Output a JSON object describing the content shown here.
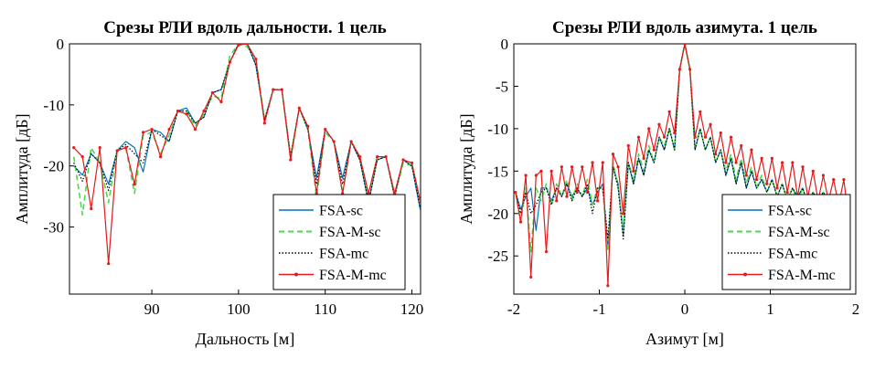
{
  "chart_data": [
    {
      "type": "line",
      "title": "Срезы РЛИ вдоль дальности. 1 цель",
      "xlabel": "Дальность [м]",
      "ylabel": "Амплитуда [дБ]",
      "xlim": [
        80.5,
        121
      ],
      "ylim": [
        -41,
        0
      ],
      "xticks": [
        90,
        100,
        110,
        120
      ],
      "yticks": [
        0,
        -10,
        -20,
        -30
      ],
      "grid": false,
      "legend_position": "bottom-right",
      "series": [
        {
          "name": "FSA-sc",
          "color": "#0072bd",
          "style": "solid",
          "x": [
            81,
            82,
            83,
            84,
            85,
            86,
            87,
            88,
            89,
            90,
            91,
            92,
            93,
            94,
            95,
            96,
            97,
            98,
            99,
            100,
            101,
            102,
            103,
            104,
            105,
            106,
            107,
            108,
            109,
            110,
            111,
            112,
            113,
            114,
            115,
            116,
            117,
            118,
            119,
            120,
            121
          ],
          "y": [
            -20,
            -21.5,
            -18,
            -19.5,
            -23,
            -17.5,
            -16,
            -17,
            -21,
            -14,
            -14.5,
            -16,
            -11,
            -10.5,
            -13,
            -12,
            -8,
            -7.5,
            -3,
            0,
            0,
            -3.5,
            -12.5,
            -7.5,
            -7.5,
            -18.5,
            -10.5,
            -14,
            -22,
            -14,
            -16,
            -22,
            -16,
            -19,
            -26,
            -19,
            -18.5,
            -25,
            -19,
            -20,
            -27.5
          ]
        },
        {
          "name": "FSA-M-sc",
          "color": "#4cd94c",
          "style": "dashed",
          "x": [
            81,
            82,
            83,
            84,
            85,
            86,
            87,
            88,
            89,
            90,
            91,
            92,
            93,
            94,
            95,
            96,
            97,
            98,
            99,
            100,
            101,
            102,
            103,
            104,
            105,
            106,
            107,
            108,
            109,
            110,
            111,
            112,
            113,
            114,
            115,
            116,
            117,
            118,
            119,
            120,
            121
          ],
          "y": [
            -18.5,
            -28,
            -17,
            -19.5,
            -26,
            -17.5,
            -17,
            -24.5,
            -15,
            -14.5,
            -18,
            -15,
            -11,
            -11,
            -13.5,
            -11.5,
            -8.5,
            -9,
            -2,
            0,
            -0.5,
            -2.5,
            -12.5,
            -7.5,
            -7.5,
            -18.5,
            -10.5,
            -14,
            -25,
            -14.5,
            -16,
            -24.5,
            -16,
            -18.5,
            -25,
            -19,
            -18.5,
            -25,
            -19.5,
            -20,
            -26
          ]
        },
        {
          "name": "FSA-mc",
          "color": "#000000",
          "style": "dotted",
          "x": [
            81,
            82,
            83,
            84,
            85,
            86,
            87,
            88,
            89,
            90,
            91,
            92,
            93,
            94,
            95,
            96,
            97,
            98,
            99,
            100,
            101,
            102,
            103,
            104,
            105,
            106,
            107,
            108,
            109,
            110,
            111,
            112,
            113,
            114,
            115,
            116,
            117,
            118,
            119,
            120,
            121
          ],
          "y": [
            -19.5,
            -22.5,
            -18,
            -19.5,
            -24,
            -17.5,
            -16.5,
            -18,
            -19.5,
            -14,
            -15,
            -16,
            -11,
            -11,
            -13,
            -12,
            -8,
            -7.5,
            -3,
            0,
            0,
            -3.5,
            -12.5,
            -7.5,
            -7.5,
            -18.5,
            -10.5,
            -14,
            -23,
            -14,
            -16,
            -23,
            -16,
            -19,
            -26,
            -19,
            -18.5,
            -25,
            -19,
            -20,
            -27
          ]
        },
        {
          "name": "FSA-M-mc",
          "color": "#e41a1c",
          "style": "solid-marker",
          "x": [
            81,
            82,
            83,
            84,
            85,
            86,
            87,
            88,
            89,
            90,
            91,
            92,
            93,
            94,
            95,
            96,
            97,
            98,
            99,
            100,
            101,
            102,
            103,
            104,
            105,
            106,
            107,
            108,
            109,
            110,
            111,
            112,
            113,
            114,
            115,
            116,
            117,
            118,
            119,
            120,
            121
          ],
          "y": [
            -17,
            -18.5,
            -27,
            -17,
            -36,
            -17.5,
            -17,
            -23,
            -14.5,
            -14,
            -18.5,
            -14,
            -11,
            -11.5,
            -14,
            -11,
            -8,
            -9.5,
            -3,
            -0.2,
            0,
            -2.5,
            -13,
            -7.5,
            -7.5,
            -19,
            -10.5,
            -13.5,
            -24.5,
            -14,
            -16,
            -24.5,
            -16,
            -18.5,
            -24.5,
            -18.5,
            -18.5,
            -24.5,
            -19,
            -19.5,
            -26
          ]
        }
      ]
    },
    {
      "type": "line",
      "title": "Срезы РЛИ вдоль азимута. 1 цель",
      "xlabel": "Азимут [м]",
      "ylabel": "Амплитуда [дБ]",
      "xlim": [
        -2,
        2
      ],
      "ylim": [
        -29.5,
        0
      ],
      "xticks": [
        -2,
        -1,
        0,
        1,
        2
      ],
      "yticks": [
        0,
        -5,
        -10,
        -15,
        -20,
        -25
      ],
      "grid": false,
      "legend_position": "bottom-right",
      "series": [
        {
          "name": "FSA-sc",
          "color": "#0072bd",
          "style": "solid",
          "x": [
            -1.98,
            -1.92,
            -1.86,
            -1.8,
            -1.74,
            -1.68,
            -1.62,
            -1.56,
            -1.5,
            -1.44,
            -1.38,
            -1.32,
            -1.26,
            -1.2,
            -1.14,
            -1.08,
            -1.02,
            -0.96,
            -0.9,
            -0.84,
            -0.78,
            -0.72,
            -0.66,
            -0.6,
            -0.54,
            -0.48,
            -0.42,
            -0.36,
            -0.3,
            -0.24,
            -0.18,
            -0.12,
            -0.06,
            0,
            0.06,
            0.12,
            0.18,
            0.24,
            0.3,
            0.36,
            0.42,
            0.48,
            0.54,
            0.6,
            0.66,
            0.72,
            0.78,
            0.84,
            0.9,
            0.96,
            1.02,
            1.08,
            1.14,
            1.2,
            1.26,
            1.32,
            1.38,
            1.44,
            1.5,
            1.56,
            1.62,
            1.68,
            1.74,
            1.8,
            1.86,
            1.92
          ],
          "y": [
            -17.5,
            -19.5,
            -18,
            -17,
            -22,
            -17,
            -17,
            -18.5,
            -17,
            -18,
            -16.5,
            -18,
            -17,
            -18,
            -17,
            -19,
            -17.5,
            -16.5,
            -24,
            -14.5,
            -16.5,
            -22.5,
            -14,
            -16.5,
            -13.5,
            -15.5,
            -12.5,
            -14,
            -11,
            -12.5,
            -10,
            -12.5,
            -3,
            0,
            -3,
            -12.5,
            -10,
            -12.5,
            -11,
            -14,
            -12.5,
            -15.5,
            -13.5,
            -16.5,
            -14,
            -17,
            -15,
            -17,
            -16,
            -17.5,
            -16,
            -18,
            -16.5,
            -18.5,
            -17,
            -18,
            -17,
            -19,
            -17.5,
            -18.5,
            -17.5,
            -18.5,
            -18,
            -18.5,
            -18,
            -19
          ]
        },
        {
          "name": "FSA-M-sc",
          "color": "#4cd94c",
          "style": "dashed",
          "x": [
            -1.98,
            -1.92,
            -1.86,
            -1.8,
            -1.74,
            -1.68,
            -1.62,
            -1.56,
            -1.5,
            -1.44,
            -1.38,
            -1.32,
            -1.26,
            -1.2,
            -1.14,
            -1.08,
            -1.02,
            -0.96,
            -0.9,
            -0.84,
            -0.78,
            -0.72,
            -0.66,
            -0.6,
            -0.54,
            -0.48,
            -0.42,
            -0.36,
            -0.3,
            -0.24,
            -0.18,
            -0.12,
            -0.06,
            0,
            0.06,
            0.12,
            0.18,
            0.24,
            0.3,
            0.36,
            0.42,
            0.48,
            0.54,
            0.6,
            0.66,
            0.72,
            0.78,
            0.84,
            0.9,
            0.96,
            1.02,
            1.08,
            1.14,
            1.2,
            1.26,
            1.32,
            1.38,
            1.44,
            1.5,
            1.56,
            1.62,
            1.68,
            1.74,
            1.8,
            1.86,
            1.92
          ],
          "y": [
            -17.5,
            -21,
            -17,
            -24.5,
            -17,
            -18.5,
            -16.5,
            -19,
            -16.5,
            -18,
            -16,
            -18.5,
            -16.5,
            -18,
            -16,
            -19,
            -17,
            -17,
            -24.5,
            -14,
            -17,
            -22,
            -14,
            -16,
            -13,
            -15,
            -12,
            -14,
            -11,
            -12,
            -10,
            -12.5,
            -3,
            0,
            -3,
            -12.5,
            -10,
            -12.5,
            -11,
            -14,
            -12.5,
            -15,
            -13,
            -16,
            -13.5,
            -16.5,
            -14.5,
            -17,
            -15.5,
            -17.5,
            -16,
            -18,
            -16.5,
            -18.5,
            -17,
            -18.5,
            -17,
            -19,
            -17.5,
            -18.5,
            -17.5,
            -19,
            -18,
            -19,
            -18,
            -19.5
          ]
        },
        {
          "name": "FSA-mc",
          "color": "#000000",
          "style": "dotted",
          "x": [
            -1.98,
            -1.92,
            -1.86,
            -1.8,
            -1.74,
            -1.68,
            -1.62,
            -1.56,
            -1.5,
            -1.44,
            -1.38,
            -1.32,
            -1.26,
            -1.2,
            -1.14,
            -1.08,
            -1.02,
            -0.96,
            -0.9,
            -0.84,
            -0.78,
            -0.72,
            -0.66,
            -0.6,
            -0.54,
            -0.48,
            -0.42,
            -0.36,
            -0.3,
            -0.24,
            -0.18,
            -0.12,
            -0.06,
            0,
            0.06,
            0.12,
            0.18,
            0.24,
            0.3,
            0.36,
            0.42,
            0.48,
            0.54,
            0.6,
            0.66,
            0.72,
            0.78,
            0.84,
            0.9,
            0.96,
            1.02,
            1.08,
            1.14,
            1.2,
            1.26,
            1.32,
            1.38,
            1.44,
            1.5,
            1.56,
            1.62,
            1.68,
            1.74,
            1.8,
            1.86,
            1.92
          ],
          "y": [
            -17.5,
            -20,
            -17.5,
            -20,
            -19,
            -17.5,
            -17,
            -19,
            -17,
            -18,
            -16.5,
            -18.5,
            -17,
            -18,
            -16.5,
            -20,
            -17,
            -17,
            -23,
            -14.5,
            -17,
            -23,
            -14,
            -16.5,
            -13.5,
            -15.5,
            -12.5,
            -14,
            -11,
            -12.5,
            -10,
            -12.5,
            -3,
            0,
            -3,
            -12.5,
            -10,
            -12.5,
            -11,
            -14,
            -12.5,
            -15.5,
            -13.5,
            -16.5,
            -14,
            -17,
            -15,
            -17,
            -16,
            -17.5,
            -16,
            -18,
            -16.5,
            -18.5,
            -17,
            -18,
            -17,
            -19,
            -17.5,
            -18.5,
            -17.5,
            -18.5,
            -18,
            -18.5,
            -18,
            -19
          ]
        },
        {
          "name": "FSA-M-mc",
          "color": "#e41a1c",
          "style": "solid-marker",
          "x": [
            -1.98,
            -1.92,
            -1.86,
            -1.8,
            -1.74,
            -1.68,
            -1.62,
            -1.56,
            -1.5,
            -1.44,
            -1.38,
            -1.32,
            -1.26,
            -1.2,
            -1.14,
            -1.08,
            -1.02,
            -0.96,
            -0.9,
            -0.84,
            -0.78,
            -0.72,
            -0.66,
            -0.6,
            -0.54,
            -0.48,
            -0.42,
            -0.36,
            -0.3,
            -0.24,
            -0.18,
            -0.12,
            -0.06,
            0,
            0.06,
            0.12,
            0.18,
            0.24,
            0.3,
            0.36,
            0.42,
            0.48,
            0.54,
            0.6,
            0.66,
            0.72,
            0.78,
            0.84,
            0.9,
            0.96,
            1.02,
            1.08,
            1.14,
            1.2,
            1.26,
            1.32,
            1.38,
            1.44,
            1.5,
            1.56,
            1.62,
            1.68,
            1.74,
            1.8,
            1.86,
            1.92
          ],
          "y": [
            -17.5,
            -21,
            -15.5,
            -27.5,
            -15.5,
            -15,
            -24.5,
            -15,
            -18.5,
            -14.5,
            -18,
            -14.5,
            -17.5,
            -14.5,
            -17.5,
            -14,
            -18.5,
            -14,
            -28.5,
            -13,
            -14.5,
            -20,
            -12,
            -15,
            -11,
            -13.5,
            -10,
            -12.5,
            -9.5,
            -11,
            -8,
            -10.5,
            -3,
            0,
            -3,
            -11,
            -8,
            -11,
            -9.5,
            -13,
            -10.5,
            -14,
            -11,
            -14,
            -12,
            -15.5,
            -12.5,
            -16,
            -13.5,
            -16.5,
            -13.5,
            -17,
            -14,
            -17.5,
            -14,
            -18,
            -14.5,
            -18,
            -15,
            -18.5,
            -15.5,
            -18.5,
            -16,
            -19,
            -16,
            -21
          ]
        }
      ]
    }
  ]
}
